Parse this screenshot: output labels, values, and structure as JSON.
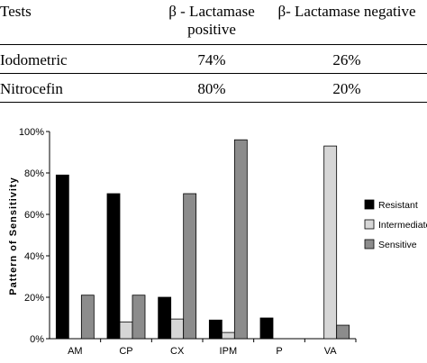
{
  "table": {
    "headers": [
      "Tests",
      "β - Lactamase",
      "positive",
      "β- Lactamase negative"
    ],
    "rows": [
      {
        "test": "Iodometric",
        "positive": "74%",
        "negative": "26%"
      },
      {
        "test": "Nitrocefin",
        "positive": "80%",
        "negative": "20%"
      }
    ]
  },
  "chart_data": {
    "type": "bar",
    "ylabel": "Pattern of Sensitivity",
    "xlabel": "",
    "ylim": [
      0,
      100
    ],
    "y_ticks": [
      "0%",
      "20%",
      "40%",
      "60%",
      "80%",
      "100%"
    ],
    "categories": [
      "AM",
      "CP",
      "CX",
      "IPM",
      "P",
      "VA"
    ],
    "series": [
      {
        "name": "Resistant",
        "color": "#000000",
        "values": [
          79,
          70,
          20,
          9,
          10,
          0
        ]
      },
      {
        "name": "Intermediate",
        "color": "#d6d6d6",
        "values": [
          0,
          8,
          9.5,
          3,
          0,
          93
        ]
      },
      {
        "name": "Sensitive",
        "color": "#8c8c8c",
        "values": [
          21,
          21,
          70,
          96,
          0,
          6.5
        ]
      }
    ],
    "legend_position": "right",
    "grid": false
  }
}
